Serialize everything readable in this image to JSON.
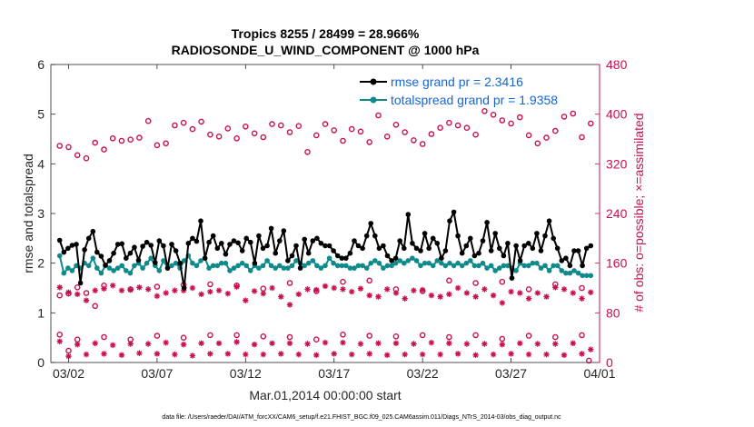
{
  "chart_data": {
    "type": "line",
    "title": "Tropics 8255 / 28499 = 28.966%",
    "subtitle": "RADIOSONDE_U_WIND_COMPONENT @ 1000 hPa",
    "xlabel": "Mar.01,2014 00:00:00 start",
    "ylabel": "rmse and totalspread",
    "y2label": "# of obs: o=possible; ×=assimilated",
    "footnote": "data file: /Users/raeder/DAI/ATM_forcXX/CAM6_setup/f.e21.FHIST_BGC.f09_025.CAM6assim.011/Diags_NTrS_2014-03/obs_diag_output.nc",
    "x_range": [
      0,
      31
    ],
    "ylim": [
      0,
      6
    ],
    "y2lim": [
      0,
      480
    ],
    "x_ticks": [
      1,
      6,
      11,
      16,
      21,
      26,
      31
    ],
    "x_tick_labels": [
      "03/02",
      "03/07",
      "03/12",
      "03/17",
      "03/22",
      "03/27",
      "04/01"
    ],
    "y_ticks": [
      0,
      1,
      2,
      3,
      4,
      5,
      6
    ],
    "y_tick_labels": [
      "0",
      "1",
      "2",
      "3",
      "4",
      "5",
      "6"
    ],
    "y2_ticks": [
      0,
      80,
      160,
      240,
      320,
      400,
      480
    ],
    "y2_tick_labels": [
      "0",
      "80",
      "160",
      "240",
      "320",
      "400",
      "480"
    ],
    "colors": {
      "rmse": "#000000",
      "spread": "#0f8a8a",
      "obs": "#c8104e",
      "legend_text": "#1565d8"
    },
    "series": [
      {
        "name": "rmse grand pr = 2.3416",
        "key": "rmse",
        "values": [
          2.46,
          2.22,
          2.3,
          2.36,
          2.38,
          1.6,
          2.27,
          2.5,
          2.64,
          2.22,
          2.14,
          1.96,
          2.05,
          2.2,
          2.38,
          2.39,
          2.1,
          2.2,
          2.32,
          2.06,
          2.34,
          2.42,
          2.36,
          2.01,
          2.45,
          2.35,
          1.9,
          2.38,
          2.25,
          2.0,
          1.5,
          2.4,
          2.5,
          2.44,
          2.85,
          2.1,
          2.42,
          2.55,
          2.3,
          2.4,
          2.18,
          2.38,
          2.45,
          2.41,
          2.25,
          2.5,
          2.42,
          2.0,
          2.55,
          2.3,
          2.35,
          2.7,
          2.2,
          2.45,
          2.65,
          2.05,
          2.15,
          2.35,
          1.9,
          2.48,
          2.2,
          2.45,
          2.5,
          2.4,
          2.35,
          2.35,
          2.25,
          2.15,
          2.1,
          2.1,
          2.2,
          2.45,
          2.35,
          2.3,
          2.55,
          2.8,
          2.55,
          2.3,
          2.35,
          2.15,
          2.05,
          2.1,
          2.45,
          2.3,
          2.98,
          2.4,
          2.3,
          2.25,
          2.6,
          2.3,
          2.5,
          2.4,
          2.1,
          2.25,
          2.85,
          3.03,
          2.55,
          2.2,
          2.35,
          2.5,
          2.15,
          2.2,
          2.45,
          2.82,
          2.25,
          2.6,
          2.3,
          2.15,
          2.4,
          1.7,
          2.35,
          2.05,
          2.35,
          2.4,
          2.3,
          2.6,
          2.25,
          2.55,
          2.85,
          2.5,
          2.3,
          2.05,
          2.1,
          1.95,
          2.25,
          2.25,
          1.95,
          2.3,
          2.35
        ]
      },
      {
        "name": "totalspread grand pr = 1.9358",
        "key": "spread",
        "values": [
          2.15,
          1.8,
          1.9,
          1.85,
          1.95,
          1.9,
          2.0,
          1.95,
          2.1,
          1.9,
          1.8,
          1.95,
          1.9,
          1.85,
          1.9,
          1.95,
          1.85,
          1.8,
          1.95,
          2.0,
          1.9,
          2.0,
          2.1,
          1.95,
          1.85,
          2.05,
          1.9,
          1.95,
          2.0,
          1.9,
          2.05,
          2.15,
          2.0,
          1.95,
          2.05,
          2.1,
          1.9,
          1.95,
          1.95,
          2.0,
          2.0,
          1.85,
          1.9,
          1.95,
          2.0,
          1.95,
          1.85,
          1.95,
          1.9,
          1.95,
          2.05,
          1.95,
          1.9,
          1.95,
          1.9,
          1.9,
          1.95,
          2.05,
          2.0,
          1.95,
          2.0,
          2.05,
          1.95,
          1.9,
          1.95,
          2.1,
          2.0,
          1.95,
          1.95,
          1.95,
          1.9,
          1.9,
          1.95,
          1.95,
          1.9,
          2.0,
          2.05,
          2.0,
          1.9,
          1.95,
          1.95,
          2.0,
          2.05,
          2.0,
          2.05,
          2.1,
          2.05,
          1.95,
          2.0,
          2.0,
          1.95,
          2.05,
          2.0,
          1.95,
          2.0,
          1.95,
          2.0,
          1.95,
          2.0,
          2.05,
          1.95,
          1.95,
          2.0,
          1.9,
          1.95,
          1.85,
          1.9,
          1.95,
          1.95,
          1.9,
          1.85,
          2.0,
          1.95,
          1.95,
          2.0,
          2.0,
          1.9,
          1.95,
          1.85,
          1.95,
          1.95,
          1.85,
          1.8,
          1.8,
          1.85,
          1.8,
          1.75,
          1.75,
          1.75
        ]
      }
    ],
    "obs_possible": [
      {
        "x": 0.5,
        "y": 349
      },
      {
        "x": 1.0,
        "y": 347
      },
      {
        "x": 1.5,
        "y": 334
      },
      {
        "x": 2.0,
        "y": 329
      },
      {
        "x": 2.5,
        "y": 354
      },
      {
        "x": 3.0,
        "y": 343
      },
      {
        "x": 3.5,
        "y": 361
      },
      {
        "x": 4.0,
        "y": 357
      },
      {
        "x": 4.5,
        "y": 359
      },
      {
        "x": 5.0,
        "y": 362
      },
      {
        "x": 5.5,
        "y": 389
      },
      {
        "x": 6.0,
        "y": 350
      },
      {
        "x": 6.5,
        "y": 353
      },
      {
        "x": 7.0,
        "y": 382
      },
      {
        "x": 7.5,
        "y": 386
      },
      {
        "x": 8.0,
        "y": 376
      },
      {
        "x": 8.5,
        "y": 388
      },
      {
        "x": 9.0,
        "y": 367
      },
      {
        "x": 9.5,
        "y": 364
      },
      {
        "x": 10.0,
        "y": 377
      },
      {
        "x": 10.5,
        "y": 361
      },
      {
        "x": 11.0,
        "y": 380
      },
      {
        "x": 11.5,
        "y": 369
      },
      {
        "x": 12.0,
        "y": 363
      },
      {
        "x": 12.5,
        "y": 384
      },
      {
        "x": 13.0,
        "y": 382
      },
      {
        "x": 13.5,
        "y": 371
      },
      {
        "x": 14.0,
        "y": 381
      },
      {
        "x": 14.5,
        "y": 339
      },
      {
        "x": 15.0,
        "y": 366
      },
      {
        "x": 15.5,
        "y": 384
      },
      {
        "x": 16.0,
        "y": 374
      },
      {
        "x": 16.5,
        "y": 357
      },
      {
        "x": 17.0,
        "y": 376
      },
      {
        "x": 17.5,
        "y": 372
      },
      {
        "x": 18.0,
        "y": 355
      },
      {
        "x": 18.5,
        "y": 398
      },
      {
        "x": 19.0,
        "y": 364
      },
      {
        "x": 19.5,
        "y": 383
      },
      {
        "x": 20.0,
        "y": 371
      },
      {
        "x": 20.5,
        "y": 358
      },
      {
        "x": 21.0,
        "y": 352
      },
      {
        "x": 21.5,
        "y": 368
      },
      {
        "x": 22.0,
        "y": 378
      },
      {
        "x": 22.5,
        "y": 386
      },
      {
        "x": 23.0,
        "y": 382
      },
      {
        "x": 23.5,
        "y": 378
      },
      {
        "x": 24.0,
        "y": 367
      },
      {
        "x": 24.5,
        "y": 405
      },
      {
        "x": 25.0,
        "y": 399
      },
      {
        "x": 25.5,
        "y": 390
      },
      {
        "x": 26.0,
        "y": 385
      },
      {
        "x": 26.5,
        "y": 395
      },
      {
        "x": 27.0,
        "y": 366
      },
      {
        "x": 27.5,
        "y": 353
      },
      {
        "x": 28.0,
        "y": 362
      },
      {
        "x": 28.5,
        "y": 373
      },
      {
        "x": 29.0,
        "y": 396
      },
      {
        "x": 29.5,
        "y": 401
      },
      {
        "x": 30.0,
        "y": 363
      },
      {
        "x": 30.5,
        "y": 385
      },
      {
        "x": 0.5,
        "y": 108
      },
      {
        "x": 1.0,
        "y": 111
      },
      {
        "x": 1.5,
        "y": 121
      },
      {
        "x": 2.0,
        "y": 112
      },
      {
        "x": 2.5,
        "y": 91
      },
      {
        "x": 3.0,
        "y": 124
      },
      {
        "x": 4.5,
        "y": 118
      },
      {
        "x": 6.0,
        "y": 122
      },
      {
        "x": 7.5,
        "y": 125
      },
      {
        "x": 9.0,
        "y": 126
      },
      {
        "x": 10.5,
        "y": 124
      },
      {
        "x": 12.0,
        "y": 119
      },
      {
        "x": 13.5,
        "y": 128
      },
      {
        "x": 15.0,
        "y": 115
      },
      {
        "x": 16.5,
        "y": 130
      },
      {
        "x": 18.0,
        "y": 132
      },
      {
        "x": 19.5,
        "y": 118
      },
      {
        "x": 21.0,
        "y": 115
      },
      {
        "x": 22.5,
        "y": 132
      },
      {
        "x": 24.0,
        "y": 128
      },
      {
        "x": 25.5,
        "y": 130
      },
      {
        "x": 27.0,
        "y": 118
      },
      {
        "x": 28.5,
        "y": 126
      },
      {
        "x": 30.0,
        "y": 120
      },
      {
        "x": 0.5,
        "y": 45
      },
      {
        "x": 1.0,
        "y": 19
      },
      {
        "x": 1.5,
        "y": 37
      },
      {
        "x": 3.0,
        "y": 41
      },
      {
        "x": 4.5,
        "y": 37
      },
      {
        "x": 6.0,
        "y": 43
      },
      {
        "x": 7.5,
        "y": 40
      },
      {
        "x": 9.0,
        "y": 44
      },
      {
        "x": 10.5,
        "y": 44
      },
      {
        "x": 12.0,
        "y": 42
      },
      {
        "x": 13.5,
        "y": 41
      },
      {
        "x": 15.0,
        "y": 37
      },
      {
        "x": 16.5,
        "y": 45
      },
      {
        "x": 18.0,
        "y": 43
      },
      {
        "x": 19.5,
        "y": 42
      },
      {
        "x": 21.0,
        "y": 44
      },
      {
        "x": 22.5,
        "y": 41
      },
      {
        "x": 24.0,
        "y": 44
      },
      {
        "x": 25.5,
        "y": 38
      },
      {
        "x": 27.0,
        "y": 43
      },
      {
        "x": 28.5,
        "y": 41
      },
      {
        "x": 30.0,
        "y": 44
      },
      {
        "x": 30.4,
        "y": 3
      }
    ],
    "obs_assimilated": [
      {
        "x": 0.5,
        "y": 121
      },
      {
        "x": 1.0,
        "y": 113
      },
      {
        "x": 1.5,
        "y": 110
      },
      {
        "x": 2.0,
        "y": 100
      },
      {
        "x": 2.5,
        "y": 116
      },
      {
        "x": 3.0,
        "y": 119
      },
      {
        "x": 3.5,
        "y": 124
      },
      {
        "x": 4.0,
        "y": 116
      },
      {
        "x": 4.5,
        "y": 117
      },
      {
        "x": 5.0,
        "y": 121
      },
      {
        "x": 5.5,
        "y": 118
      },
      {
        "x": 6.0,
        "y": 107
      },
      {
        "x": 6.5,
        "y": 112
      },
      {
        "x": 7.0,
        "y": 116
      },
      {
        "x": 7.5,
        "y": 116
      },
      {
        "x": 8.0,
        "y": 120
      },
      {
        "x": 8.5,
        "y": 110
      },
      {
        "x": 9.0,
        "y": 114
      },
      {
        "x": 9.5,
        "y": 116
      },
      {
        "x": 10.0,
        "y": 111
      },
      {
        "x": 10.5,
        "y": 122
      },
      {
        "x": 11.0,
        "y": 100
      },
      {
        "x": 11.5,
        "y": 115
      },
      {
        "x": 12.0,
        "y": 111
      },
      {
        "x": 12.5,
        "y": 120
      },
      {
        "x": 13.0,
        "y": 106
      },
      {
        "x": 13.5,
        "y": 93
      },
      {
        "x": 14.0,
        "y": 110
      },
      {
        "x": 14.5,
        "y": 118
      },
      {
        "x": 15.0,
        "y": 117
      },
      {
        "x": 15.5,
        "y": 123
      },
      {
        "x": 16.0,
        "y": 120
      },
      {
        "x": 16.5,
        "y": 118
      },
      {
        "x": 17.0,
        "y": 114
      },
      {
        "x": 17.5,
        "y": 119
      },
      {
        "x": 18.0,
        "y": 108
      },
      {
        "x": 18.5,
        "y": 106
      },
      {
        "x": 19.0,
        "y": 118
      },
      {
        "x": 19.5,
        "y": 112
      },
      {
        "x": 20.0,
        "y": 103
      },
      {
        "x": 20.5,
        "y": 116
      },
      {
        "x": 21.0,
        "y": 117
      },
      {
        "x": 21.5,
        "y": 108
      },
      {
        "x": 22.0,
        "y": 106
      },
      {
        "x": 22.5,
        "y": 110
      },
      {
        "x": 23.0,
        "y": 120
      },
      {
        "x": 23.5,
        "y": 112
      },
      {
        "x": 24.0,
        "y": 106
      },
      {
        "x": 24.5,
        "y": 118
      },
      {
        "x": 25.0,
        "y": 108
      },
      {
        "x": 25.5,
        "y": 96
      },
      {
        "x": 26.0,
        "y": 114
      },
      {
        "x": 26.5,
        "y": 112
      },
      {
        "x": 27.0,
        "y": 103
      },
      {
        "x": 27.5,
        "y": 112
      },
      {
        "x": 28.0,
        "y": 106
      },
      {
        "x": 28.5,
        "y": 121
      },
      {
        "x": 29.0,
        "y": 118
      },
      {
        "x": 29.5,
        "y": 112
      },
      {
        "x": 30.0,
        "y": 103
      },
      {
        "x": 30.5,
        "y": 113
      },
      {
        "x": 0.5,
        "y": 34
      },
      {
        "x": 1.0,
        "y": 10
      },
      {
        "x": 1.5,
        "y": 29
      },
      {
        "x": 2.0,
        "y": 13
      },
      {
        "x": 2.5,
        "y": 31
      },
      {
        "x": 3.0,
        "y": 14
      },
      {
        "x": 3.5,
        "y": 28
      },
      {
        "x": 4.0,
        "y": 12
      },
      {
        "x": 4.5,
        "y": 30
      },
      {
        "x": 5.0,
        "y": 15
      },
      {
        "x": 5.5,
        "y": 30
      },
      {
        "x": 6.0,
        "y": 14
      },
      {
        "x": 6.5,
        "y": 32
      },
      {
        "x": 7.0,
        "y": 13
      },
      {
        "x": 7.5,
        "y": 29
      },
      {
        "x": 8.0,
        "y": 11
      },
      {
        "x": 8.5,
        "y": 31
      },
      {
        "x": 9.0,
        "y": 14
      },
      {
        "x": 9.5,
        "y": 31
      },
      {
        "x": 10.0,
        "y": 14
      },
      {
        "x": 10.5,
        "y": 33
      },
      {
        "x": 11.0,
        "y": 13
      },
      {
        "x": 11.5,
        "y": 29
      },
      {
        "x": 12.0,
        "y": 13
      },
      {
        "x": 12.5,
        "y": 31
      },
      {
        "x": 13.0,
        "y": 14
      },
      {
        "x": 13.5,
        "y": 31
      },
      {
        "x": 14.0,
        "y": 13
      },
      {
        "x": 14.5,
        "y": 30
      },
      {
        "x": 15.0,
        "y": 12
      },
      {
        "x": 15.5,
        "y": 32
      },
      {
        "x": 16.0,
        "y": 14
      },
      {
        "x": 16.5,
        "y": 32
      },
      {
        "x": 17.0,
        "y": 13
      },
      {
        "x": 17.5,
        "y": 30
      },
      {
        "x": 18.0,
        "y": 14
      },
      {
        "x": 18.5,
        "y": 31
      },
      {
        "x": 19.0,
        "y": 12
      },
      {
        "x": 19.5,
        "y": 31
      },
      {
        "x": 20.0,
        "y": 13
      },
      {
        "x": 20.5,
        "y": 30
      },
      {
        "x": 21.0,
        "y": 13
      },
      {
        "x": 21.5,
        "y": 32
      },
      {
        "x": 22.0,
        "y": 13
      },
      {
        "x": 22.5,
        "y": 31
      },
      {
        "x": 23.0,
        "y": 14
      },
      {
        "x": 23.5,
        "y": 30
      },
      {
        "x": 24.0,
        "y": 12
      },
      {
        "x": 24.5,
        "y": 30
      },
      {
        "x": 25.0,
        "y": 13
      },
      {
        "x": 25.5,
        "y": 29
      },
      {
        "x": 26.0,
        "y": 14
      },
      {
        "x": 26.5,
        "y": 31
      },
      {
        "x": 27.0,
        "y": 13
      },
      {
        "x": 27.5,
        "y": 30
      },
      {
        "x": 28.0,
        "y": 13
      },
      {
        "x": 28.5,
        "y": 30
      },
      {
        "x": 29.0,
        "y": 12
      },
      {
        "x": 29.5,
        "y": 31
      },
      {
        "x": 30.0,
        "y": 14
      },
      {
        "x": 30.5,
        "y": 21
      }
    ]
  }
}
